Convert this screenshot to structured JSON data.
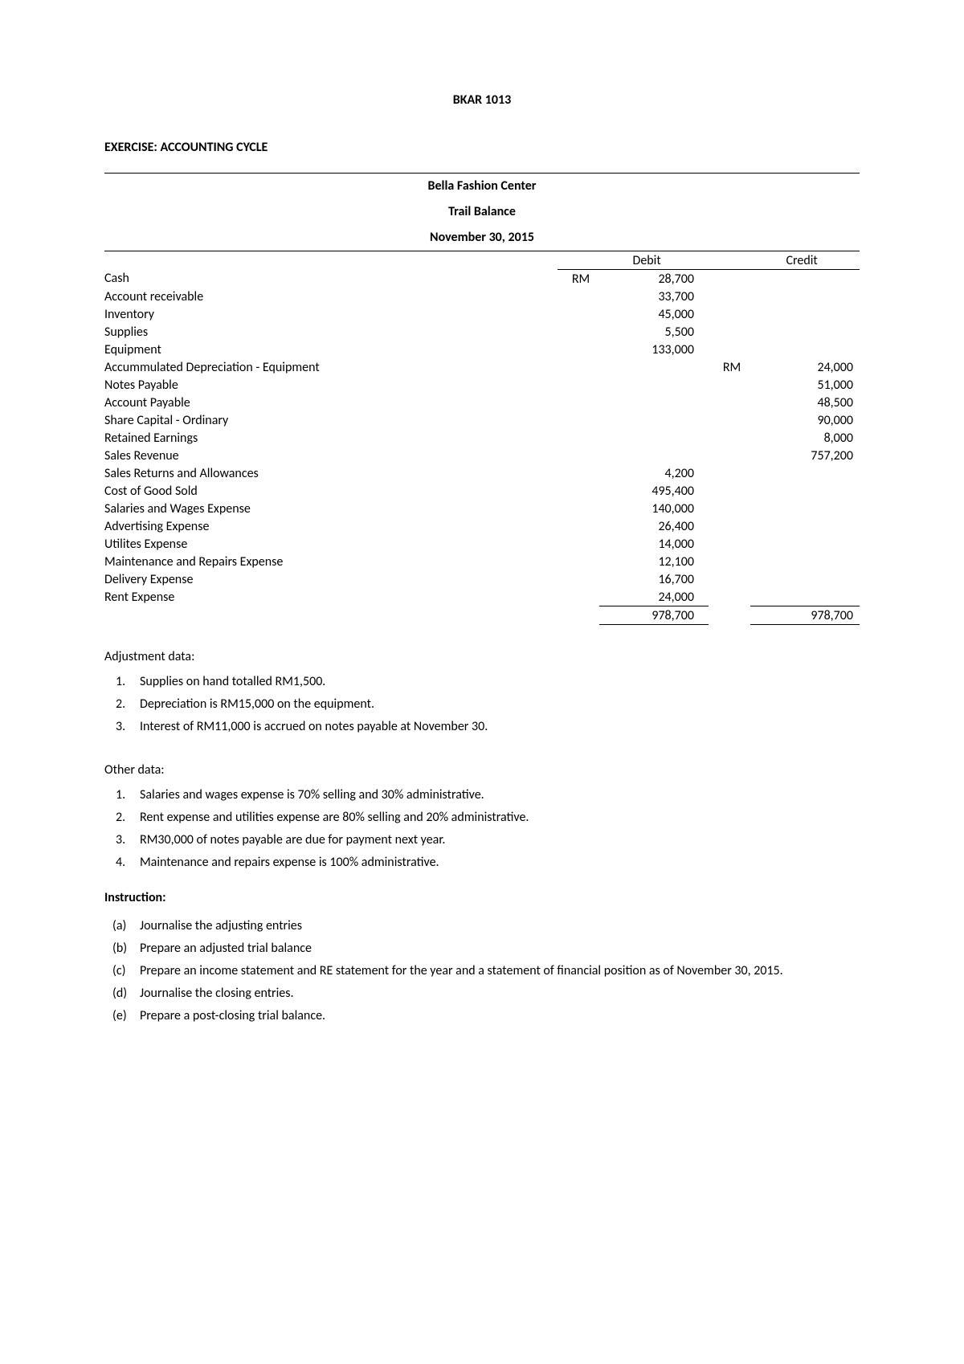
{
  "header": {
    "course": "BKAR 1013",
    "exercise": "EXERCISE: ACCOUNTING CYCLE"
  },
  "trial_balance": {
    "company": "Bella Fashion Center",
    "title": "Trail Balance",
    "date": "November 30, 2015",
    "debit_header": "Debit",
    "credit_header": "Credit",
    "currency": "RM",
    "rows": [
      {
        "account": "Cash",
        "debit_currency": "RM",
        "debit": "28,700",
        "credit_currency": "",
        "credit": ""
      },
      {
        "account": "Account receivable",
        "debit_currency": "",
        "debit": "33,700",
        "credit_currency": "",
        "credit": ""
      },
      {
        "account": "Inventory",
        "debit_currency": "",
        "debit": "45,000",
        "credit_currency": "",
        "credit": ""
      },
      {
        "account": "Supplies",
        "debit_currency": "",
        "debit": "5,500",
        "credit_currency": "",
        "credit": ""
      },
      {
        "account": "Equipment",
        "debit_currency": "",
        "debit": "133,000",
        "credit_currency": "",
        "credit": ""
      },
      {
        "account": "Accummulated Depreciation - Equipment",
        "debit_currency": "",
        "debit": "",
        "credit_currency": "RM",
        "credit": "24,000"
      },
      {
        "account": "Notes Payable",
        "debit_currency": "",
        "debit": "",
        "credit_currency": "",
        "credit": "51,000"
      },
      {
        "account": "Account Payable",
        "debit_currency": "",
        "debit": "",
        "credit_currency": "",
        "credit": "48,500"
      },
      {
        "account": "Share Capital - Ordinary",
        "debit_currency": "",
        "debit": "",
        "credit_currency": "",
        "credit": "90,000"
      },
      {
        "account": "Retained Earnings",
        "debit_currency": "",
        "debit": "",
        "credit_currency": "",
        "credit": "8,000"
      },
      {
        "account": "Sales Revenue",
        "debit_currency": "",
        "debit": "",
        "credit_currency": "",
        "credit": "757,200"
      },
      {
        "account": "Sales Returns and Allowances",
        "debit_currency": "",
        "debit": "4,200",
        "credit_currency": "",
        "credit": ""
      },
      {
        "account": "Cost of Good Sold",
        "debit_currency": "",
        "debit": "495,400",
        "credit_currency": "",
        "credit": ""
      },
      {
        "account": "Salaries and Wages Expense",
        "debit_currency": "",
        "debit": "140,000",
        "credit_currency": "",
        "credit": ""
      },
      {
        "account": "Advertising Expense",
        "debit_currency": "",
        "debit": "26,400",
        "credit_currency": "",
        "credit": ""
      },
      {
        "account": "Utilites Expense",
        "debit_currency": "",
        "debit": "14,000",
        "credit_currency": "",
        "credit": ""
      },
      {
        "account": "Maintenance and Repairs Expense",
        "debit_currency": "",
        "debit": "12,100",
        "credit_currency": "",
        "credit": ""
      },
      {
        "account": "Delivery Expense",
        "debit_currency": "",
        "debit": "16,700",
        "credit_currency": "",
        "credit": ""
      },
      {
        "account": "Rent Expense",
        "debit_currency": "",
        "debit": "24,000",
        "credit_currency": "",
        "credit": ""
      }
    ],
    "total_debit": "978,700",
    "total_credit": "978,700"
  },
  "adjustment": {
    "heading": "Adjustment data:",
    "items": [
      {
        "n": "1.",
        "text": "Supplies on hand totalled RM1,500."
      },
      {
        "n": "2.",
        "text": "Depreciation is RM15,000 on the equipment."
      },
      {
        "n": "3.",
        "text": "Interest of RM11,000 is accrued on notes payable at November 30."
      }
    ]
  },
  "other": {
    "heading": "Other data:",
    "items": [
      {
        "n": "1.",
        "text": "Salaries and wages expense is 70% selling and 30% administrative."
      },
      {
        "n": "2.",
        "text": "Rent expense and utilities expense are 80% selling and 20% administrative."
      },
      {
        "n": "3.",
        "text": "RM30,000 of notes payable are due for payment next year."
      },
      {
        "n": "4.",
        "text": "Maintenance and repairs expense is 100% administrative."
      }
    ]
  },
  "instruction": {
    "heading": "Instruction:",
    "items": [
      {
        "n": "(a)",
        "text": "Journalise the adjusting entries"
      },
      {
        "n": "(b)",
        "text": "Prepare an adjusted trial balance"
      },
      {
        "n": "(c)",
        "text": "Prepare an income statement and RE statement for the year and a statement of financial position as of November 30, 2015."
      },
      {
        "n": "(d)",
        "text": "Journalise the closing entries."
      },
      {
        "n": "(e)",
        "text": "Prepare a post-closing trial balance."
      }
    ]
  }
}
